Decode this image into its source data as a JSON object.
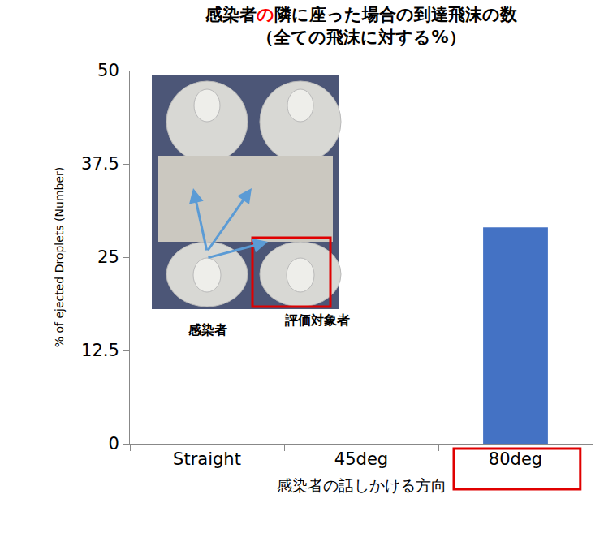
{
  "chart_data": {
    "type": "bar",
    "title": "感染者の隣に座った場合の到達飛沫の数",
    "subtitle": "（全ての飛沫に対する%）",
    "x_label": "感染者の話しかける方向",
    "y_label": "% of ejected Droplets (Number)",
    "categories": [
      "Straight",
      "45deg",
      "80deg"
    ],
    "values": [
      0,
      0,
      29
    ],
    "color": "#4472c4",
    "ylim": [
      0,
      50
    ],
    "yticks": [
      0,
      12.5,
      25,
      37.5,
      50
    ],
    "grid": false,
    "annotations": [
      "感染者",
      "評価対象者"
    ]
  }
}
